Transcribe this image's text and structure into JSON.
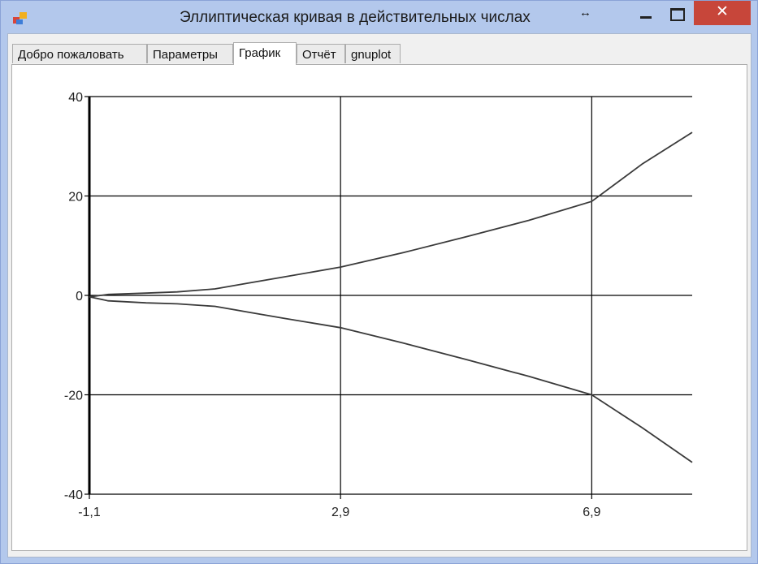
{
  "window": {
    "title": "Эллиптическая кривая в действительных числах",
    "title_suffix_glyph": "↔",
    "close_glyph": "✕"
  },
  "tabs": [
    {
      "label": "Добро пожаловать",
      "active": false
    },
    {
      "label": "Параметры",
      "active": false
    },
    {
      "label": "График",
      "active": true
    },
    {
      "label": "Отчёт",
      "active": false
    },
    {
      "label": "gnuplot",
      "active": false
    }
  ],
  "chart_data": {
    "type": "line",
    "title": "",
    "xlabel": "",
    "ylabel": "",
    "xlim": [
      -1.1,
      8.5
    ],
    "ylim": [
      -40,
      40
    ],
    "x_ticks": [
      "-1,1",
      "2,9",
      "6,9"
    ],
    "x_tick_values": [
      -1.1,
      2.9,
      6.9
    ],
    "y_ticks": [
      "40",
      "20",
      "0",
      "-20",
      "-40"
    ],
    "y_tick_values": [
      40,
      20,
      0,
      -20,
      -40
    ],
    "grid": true,
    "series": [
      {
        "x": [
          -1.1,
          -0.8,
          -0.2,
          0.3,
          0.9,
          1.4,
          2.0,
          2.9,
          3.9,
          4.9,
          5.9,
          6.9,
          7.7,
          8.5
        ],
        "values": [
          -0.3,
          0.2,
          0.45,
          0.7,
          1.3,
          2.4,
          3.7,
          5.7,
          8.6,
          11.8,
          15.1,
          18.9,
          26.4,
          32.8
        ]
      },
      {
        "x": [
          -1.1,
          -0.8,
          -0.2,
          0.3,
          0.9,
          1.4,
          2.0,
          2.9,
          3.9,
          4.9,
          5.9,
          6.9,
          7.7,
          8.5
        ],
        "values": [
          -0.3,
          -1.1,
          -1.5,
          -1.7,
          -2.2,
          -3.3,
          -4.6,
          -6.5,
          -9.6,
          -12.9,
          -16.3,
          -20.0,
          -26.6,
          -33.6
        ]
      }
    ],
    "colors": {
      "curve": "#3a3a3a",
      "grid": "#000000",
      "axis": "#000000"
    }
  }
}
